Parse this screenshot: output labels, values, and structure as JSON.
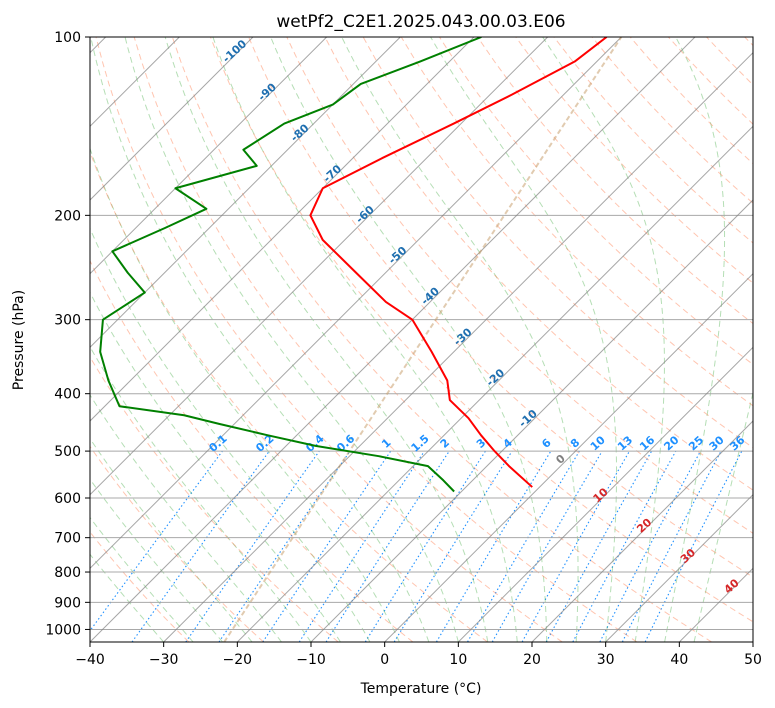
{
  "chart_data": {
    "type": "skew-t",
    "title": "wetPf2_C2E1.2025.043.00.03.E06",
    "xlabel": "Temperature (°C)",
    "ylabel": "Pressure (hPa)",
    "xlim": [
      -40,
      50
    ],
    "ylim": [
      1050,
      100
    ],
    "y_scale": "log",
    "grid": true,
    "x_ticks": [
      "−40",
      "−30",
      "−20",
      "−10",
      "0",
      "10",
      "20",
      "30",
      "40",
      "50"
    ],
    "y_ticks": [
      "100",
      "200",
      "300",
      "400",
      "500",
      "600",
      "700",
      "800",
      "900",
      "1000"
    ],
    "series": [
      {
        "name": "",
        "color": "#ff0000",
        "kind": "temperature",
        "points": [
          [
            100,
            -52
          ],
          [
            110,
            -53
          ],
          [
            125,
            -57
          ],
          [
            140,
            -61
          ],
          [
            160,
            -66
          ],
          [
            180,
            -70
          ],
          [
            200,
            -68
          ],
          [
            220,
            -63
          ],
          [
            250,
            -54
          ],
          [
            280,
            -46
          ],
          [
            300,
            -40
          ],
          [
            340,
            -33
          ],
          [
            380,
            -27
          ],
          [
            410,
            -24
          ],
          [
            440,
            -19
          ],
          [
            470,
            -15
          ],
          [
            500,
            -11
          ],
          [
            530,
            -7
          ],
          [
            575,
            -1
          ]
        ]
      },
      {
        "name": "",
        "color": "#008000",
        "kind": "dewpoint",
        "points": [
          [
            100,
            -69
          ],
          [
            110,
            -74
          ],
          [
            120,
            -79
          ],
          [
            130,
            -80
          ],
          [
            140,
            -84
          ],
          [
            155,
            -86
          ],
          [
            165,
            -82
          ],
          [
            180,
            -90
          ],
          [
            195,
            -83
          ],
          [
            210,
            -86
          ],
          [
            230,
            -90
          ],
          [
            250,
            -85
          ],
          [
            270,
            -80
          ],
          [
            300,
            -82
          ],
          [
            340,
            -78
          ],
          [
            380,
            -73
          ],
          [
            420,
            -68
          ],
          [
            435,
            -58
          ],
          [
            450,
            -52
          ],
          [
            470,
            -44
          ],
          [
            490,
            -36
          ],
          [
            510,
            -26
          ],
          [
            530,
            -18
          ],
          [
            560,
            -14
          ],
          [
            585,
            -11
          ]
        ]
      }
    ],
    "dry_adiabat_labels": [
      "-100",
      "-90",
      "-80",
      "-70",
      "-60",
      "-50",
      "-40",
      "-30",
      "-20",
      "-10",
      "0"
    ],
    "moist_adiabat_labels": [
      "10",
      "20",
      "30",
      "40"
    ],
    "mixing_ratio_labels": [
      "0.1",
      "0.2",
      "0.4",
      "0.6",
      "1",
      "1.5",
      "2",
      "3",
      "4",
      "6",
      "8",
      "10",
      "13",
      "16",
      "20",
      "25",
      "30",
      "36"
    ],
    "colors": {
      "temperature": "#ff0000",
      "dewpoint": "#008000",
      "isotherm": "#808080",
      "isobar": "#a8a8a8",
      "dry_adiabat": "#ff7f50",
      "moist_adiabat": "#2ca02c",
      "mixing_ratio": "#1e90ff",
      "lcl_curve": "#c8a070"
    }
  }
}
